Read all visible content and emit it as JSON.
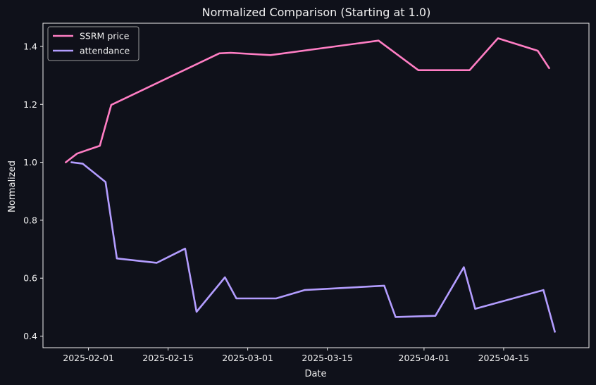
{
  "chart_data": {
    "type": "line",
    "title": "Normalized  Comparison (Starting at 1.0)",
    "xlabel": "Date",
    "ylabel": "Normalized",
    "x_axis_type": "date",
    "xlim": [
      "2025-01-24",
      "2025-04-30"
    ],
    "ylim": [
      0.36,
      1.48
    ],
    "x_ticks": [
      "2025-02-01",
      "2025-02-15",
      "2025-03-01",
      "2025-03-15",
      "2025-04-01",
      "2025-04-15"
    ],
    "y_ticks": [
      "0.4",
      "0.6",
      "0.8",
      "1.0",
      "1.2",
      "1.4"
    ],
    "grid": false,
    "legend_position": "top-left",
    "series": [
      {
        "name": "SSRM price",
        "color": "#ff7ec4",
        "points": [
          {
            "x": "2025-01-28",
            "y": 1.0
          },
          {
            "x": "2025-01-30",
            "y": 1.03
          },
          {
            "x": "2025-02-03",
            "y": 1.057
          },
          {
            "x": "2025-02-05",
            "y": 1.198
          },
          {
            "x": "2025-02-24",
            "y": 1.376
          },
          {
            "x": "2025-02-26",
            "y": 1.378
          },
          {
            "x": "2025-03-05",
            "y": 1.37
          },
          {
            "x": "2025-03-24",
            "y": 1.42
          },
          {
            "x": "2025-03-31",
            "y": 1.318
          },
          {
            "x": "2025-04-09",
            "y": 1.318
          },
          {
            "x": "2025-04-14",
            "y": 1.428
          },
          {
            "x": "2025-04-21",
            "y": 1.385
          },
          {
            "x": "2025-04-23",
            "y": 1.325
          }
        ]
      },
      {
        "name": "attendance",
        "color": "#b39dff",
        "points": [
          {
            "x": "2025-01-29",
            "y": 1.0
          },
          {
            "x": "2025-01-31",
            "y": 0.995
          },
          {
            "x": "2025-02-04",
            "y": 0.932
          },
          {
            "x": "2025-02-06",
            "y": 0.668
          },
          {
            "x": "2025-02-13",
            "y": 0.653
          },
          {
            "x": "2025-02-18",
            "y": 0.702
          },
          {
            "x": "2025-02-20",
            "y": 0.484
          },
          {
            "x": "2025-02-25",
            "y": 0.603
          },
          {
            "x": "2025-02-27",
            "y": 0.53
          },
          {
            "x": "2025-03-06",
            "y": 0.53
          },
          {
            "x": "2025-03-11",
            "y": 0.559
          },
          {
            "x": "2025-03-25",
            "y": 0.574
          },
          {
            "x": "2025-03-27",
            "y": 0.466
          },
          {
            "x": "2025-04-03",
            "y": 0.47
          },
          {
            "x": "2025-04-08",
            "y": 0.638
          },
          {
            "x": "2025-04-10",
            "y": 0.494
          },
          {
            "x": "2025-04-22",
            "y": 0.559
          },
          {
            "x": "2025-04-24",
            "y": 0.415
          }
        ]
      }
    ]
  }
}
